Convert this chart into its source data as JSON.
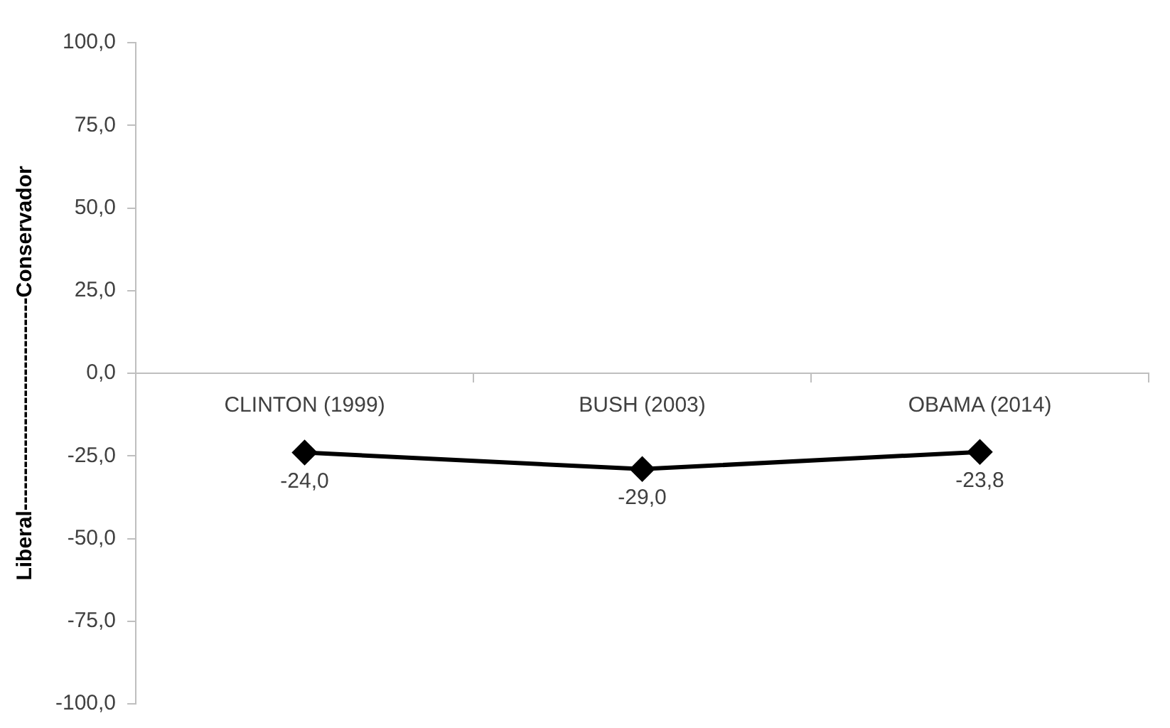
{
  "chart_data": {
    "type": "line",
    "ylabel": "Liberal------------------------------Conservador",
    "categories": [
      "CLINTON (1999)",
      "BUSH (2003)",
      "OBAMA (2014)"
    ],
    "series": [
      {
        "color": "#000000",
        "values": [
          -24.0,
          -29.0,
          -23.8
        ],
        "value_labels": [
          "-24,0",
          "-29,0",
          "-23,8"
        ]
      }
    ],
    "ylim": [
      -100,
      100
    ],
    "yticks": [
      {
        "value": -100,
        "label": "-100,0"
      },
      {
        "value": -75,
        "label": "-75,0"
      },
      {
        "value": -50,
        "label": "-50,0"
      },
      {
        "value": -25,
        "label": "-25,0"
      },
      {
        "value": 0,
        "label": "0,0"
      },
      {
        "value": 25,
        "label": "25,0"
      },
      {
        "value": 50,
        "label": "50,0"
      },
      {
        "value": 75,
        "label": "75,0"
      },
      {
        "value": 100,
        "label": "100,0"
      }
    ],
    "grid": false,
    "legend": false,
    "marker": "diamond",
    "line_style": "solid"
  }
}
